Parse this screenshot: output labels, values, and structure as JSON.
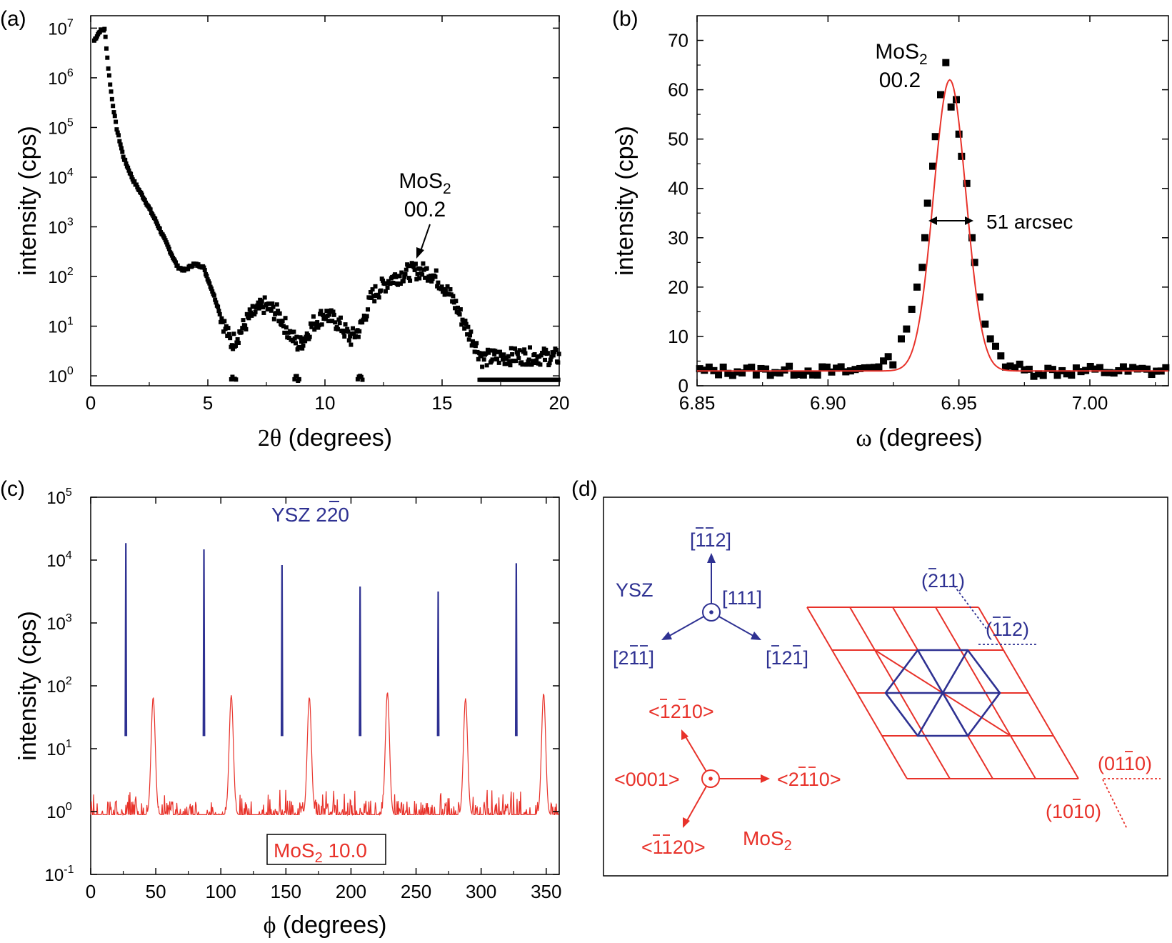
{
  "colors": {
    "black": "#000000",
    "fit_red": "#e8322a",
    "ysz_blue": "#2e3192",
    "mos2_red": "#e8322a",
    "diagram_red": "#e8322a"
  },
  "chart_data": [
    {
      "id": "a",
      "panel_label": "(a)",
      "type": "scatter",
      "yscale": "log",
      "xlabel_symbol": "2θ",
      "xlabel_text": " (degrees)",
      "ylabel": "intensity (cps)",
      "xlim": [
        0,
        20
      ],
      "ylim_log10": [
        -0.2,
        7.25
      ],
      "xticks": [
        0,
        5,
        10,
        15,
        20
      ],
      "ytick_exponents": [
        0,
        1,
        2,
        3,
        4,
        5,
        6,
        7
      ],
      "curve_points": [
        [
          0.15,
          6.75
        ],
        [
          0.4,
          6.95
        ],
        [
          0.6,
          6.97
        ],
        [
          0.75,
          6.2
        ],
        [
          0.9,
          5.6
        ],
        [
          1.1,
          5.0
        ],
        [
          1.4,
          4.4
        ],
        [
          1.8,
          3.95
        ],
        [
          2.3,
          3.55
        ],
        [
          2.8,
          3.1
        ],
        [
          3.3,
          2.6
        ],
        [
          3.7,
          2.2
        ],
        [
          4.0,
          2.12
        ],
        [
          4.4,
          2.25
        ],
        [
          4.8,
          2.2
        ],
        [
          5.2,
          1.7
        ],
        [
          5.6,
          1.15
        ],
        [
          6.0,
          0.65
        ],
        [
          6.3,
          0.82
        ],
        [
          6.8,
          1.2
        ],
        [
          7.4,
          1.42
        ],
        [
          8.0,
          1.25
        ],
        [
          8.5,
          0.85
        ],
        [
          8.9,
          0.6
        ],
        [
          9.5,
          1.05
        ],
        [
          10.0,
          1.25
        ],
        [
          10.6,
          1.05
        ],
        [
          11.1,
          0.75
        ],
        [
          11.5,
          0.95
        ],
        [
          12.0,
          1.6
        ],
        [
          12.8,
          1.95
        ],
        [
          13.5,
          2.08
        ],
        [
          14.0,
          2.12
        ],
        [
          14.5,
          2.08
        ],
        [
          15.0,
          1.85
        ],
        [
          15.5,
          1.5
        ],
        [
          16.0,
          1.0
        ],
        [
          16.4,
          0.65
        ],
        [
          16.7,
          0.35
        ],
        [
          17.5,
          0.38
        ],
        [
          18.5,
          0.4
        ],
        [
          20.0,
          0.38
        ]
      ],
      "floor_points": [
        [
          6.1,
          -0.05
        ],
        [
          8.8,
          -0.05
        ],
        [
          11.5,
          -0.05
        ]
      ],
      "floor_band": {
        "x_start": 16.6,
        "x_end": 20.0,
        "level_log10": -0.08
      },
      "annotation": {
        "text": "MoS",
        "sub": "2",
        "line2": "00.2",
        "arrow_to": [
          14.0,
          2.2
        ]
      }
    },
    {
      "id": "b",
      "panel_label": "(b)",
      "type": "scatter+line",
      "xlabel_symbol": "ω",
      "xlabel_text": " (degrees)",
      "ylabel": "intensity (cps)",
      "xlim": [
        6.85,
        7.03
      ],
      "ylim": [
        0,
        75
      ],
      "xticks": [
        6.85,
        6.9,
        6.95,
        7.0
      ],
      "xtick_labels": [
        "6.85",
        "6.90",
        "6.95",
        "7.00"
      ],
      "yticks": [
        0,
        10,
        20,
        30,
        40,
        50,
        60,
        70
      ],
      "fit": {
        "center": 6.9465,
        "amplitude": 59.0,
        "sigma": 0.0062,
        "baseline": 3.0
      },
      "peak_points": [
        [
          6.928,
          9.5
        ],
        [
          6.93,
          11.5
        ],
        [
          6.932,
          15.5
        ],
        [
          6.934,
          20.0
        ],
        [
          6.936,
          24.0
        ],
        [
          6.937,
          30.0
        ],
        [
          6.938,
          37.0
        ],
        [
          6.94,
          44.5
        ],
        [
          6.941,
          50.5
        ],
        [
          6.943,
          59.0
        ],
        [
          6.945,
          65.5
        ],
        [
          6.947,
          56.5
        ],
        [
          6.949,
          58.0
        ],
        [
          6.95,
          51.0
        ],
        [
          6.951,
          46.5
        ],
        [
          6.953,
          41.0
        ],
        [
          6.955,
          30.0
        ],
        [
          6.956,
          25.0
        ],
        [
          6.958,
          18.0
        ],
        [
          6.96,
          12.5
        ],
        [
          6.962,
          9.5
        ],
        [
          6.964,
          8.0
        ]
      ],
      "fwhm_label": "51 arcsec",
      "annotation": {
        "text": "MoS",
        "sub": "2",
        "line2": "00.2"
      }
    },
    {
      "id": "c",
      "panel_label": "(c)",
      "type": "line",
      "yscale": "log",
      "xlabel_symbol": "ϕ",
      "xlabel_text": " (degrees)",
      "ylabel": "intensity (cps)",
      "xlim": [
        0,
        360
      ],
      "ylim_log10": [
        -1,
        5
      ],
      "xticks": [
        0,
        50,
        100,
        150,
        200,
        250,
        300,
        350
      ],
      "ytick_exponents": [
        -1,
        0,
        1,
        2,
        3,
        4,
        5
      ],
      "series": [
        {
          "name": "YSZ 220",
          "color": "ysz",
          "peaks": [
            [
              27,
              4.27
            ],
            [
              87,
              4.17
            ],
            [
              147,
              3.92
            ],
            [
              207,
              3.58
            ],
            [
              267,
              3.5
            ],
            [
              327,
              3.95
            ]
          ],
          "base_log10": 1.2
        },
        {
          "name": "MoS2 10.0",
          "color": "mos2",
          "peaks": [
            [
              48,
              1.82
            ],
            [
              108,
              1.85
            ],
            [
              168,
              1.82
            ],
            [
              228,
              1.9
            ],
            [
              288,
              1.8
            ],
            [
              348,
              1.88
            ]
          ],
          "noise_log10": [
            -0.9,
            0.35
          ]
        }
      ],
      "ysz_label": {
        "pre": "YSZ 2",
        "bar": "2",
        "post": "0"
      },
      "mos2_label": {
        "pre": "MoS",
        "sub": "2",
        "post": " 10.0"
      }
    }
  ],
  "panel_d": {
    "panel_label": "(d)",
    "ysz_title": "YSZ",
    "mos2_title_main": "MoS",
    "mos2_title_sub": "2",
    "ysz_dir_111": "[111]",
    "ysz_dir_up": "[112]",
    "ysz_dir_left": "[211]",
    "ysz_dir_right": "[121]",
    "mos2_dir_0001": "<0001>",
    "mos2_dir_up": "<1210>",
    "mos2_dir_right": "<2110>",
    "mos2_dir_down": "<1120>",
    "plane_211": "(211)",
    "plane_112": "(112)",
    "plane_01_10": "(0110)",
    "plane_10_10": "(1010)"
  }
}
